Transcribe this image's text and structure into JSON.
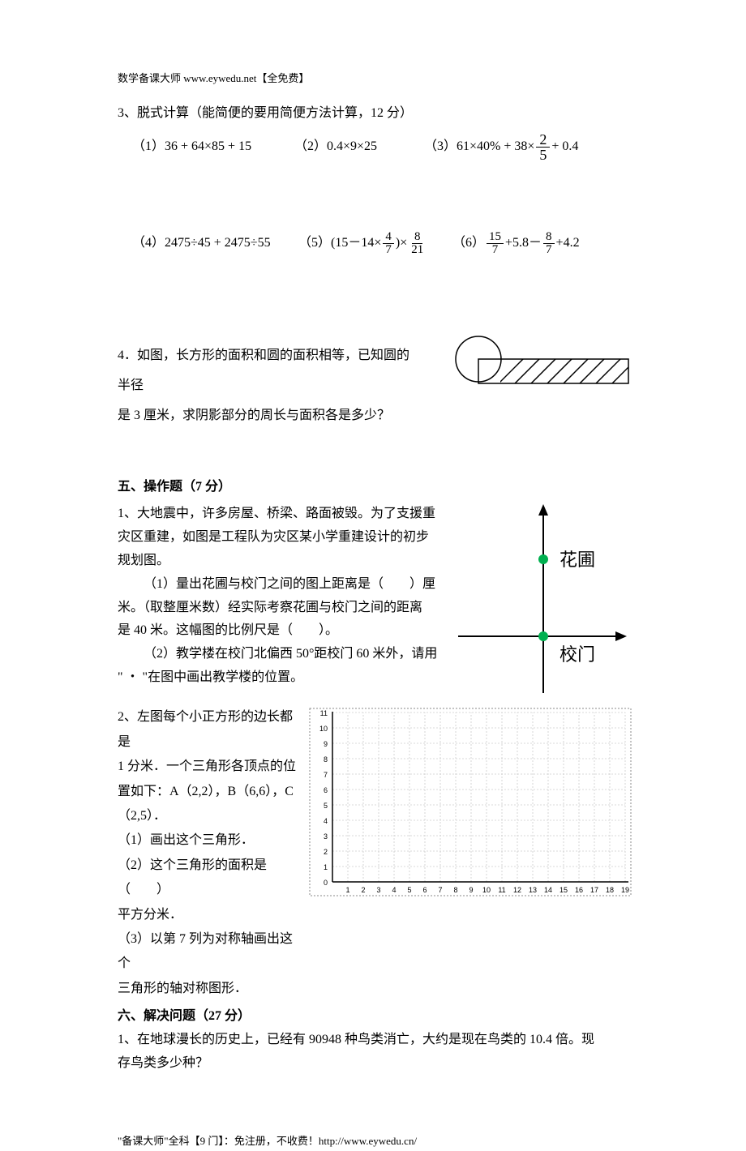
{
  "header": "数学备课大师  www.eywedu.net【全免费】",
  "q3": {
    "title": "3、脱式计算（能简便的要用简便方法计算，12 分）",
    "items": {
      "i1": "（1）36 + 64×85 + 15",
      "i2": "（2）0.4×9×25",
      "i3_prefix": "（3）61×40% + 38×",
      "i3_frac_num": "2",
      "i3_frac_den": "5",
      "i3_suffix": " + 0.4",
      "i4": "（4）2475÷45 + 2475÷55",
      "i5_prefix": "（5）(15－14×",
      "i5_f1_num": "4",
      "i5_f1_den": "7",
      "i5_mid": ")×",
      "i5_f2_num": "8",
      "i5_f2_den": "21",
      "i6_prefix": "（6） ",
      "i6_f1_num": "15",
      "i6_f1_den": "7",
      "i6_mid1": "+5.8－",
      "i6_f2_num": "8",
      "i6_f2_den": "7",
      "i6_suffix": "+4.2"
    }
  },
  "q4": {
    "line1": "4．如图，长方形的面积和圆的面积相等，已知圆的半径",
    "line2": "是 3 厘米，求阴影部分的周长与面积各是多少？"
  },
  "section5": {
    "title": "五、操作题（7 分）",
    "q1": {
      "l1": "1、大地震中，许多房屋、桥梁、路面被毁。为了支援重",
      "l2": "灾区重建，如图是工程队为灾区某小学重建设计的初步",
      "l3": "规划图。",
      "l4": "（1）量出花圃与校门之间的图上距离是（　　）厘",
      "l5": "米。（取整厘米数）经实际考察花圃与校门之间的距离",
      "l6": "是 40 米。这幅图的比例尺是（　　）。",
      "l7": "（2）教学楼在校门北偏西 50°距校门 60 米外，请用",
      "l8": "\" ・ \"在图中画出教学楼的位置。",
      "label_huapu": "花圃",
      "label_xiaomen": "校门"
    },
    "q2": {
      "l1": "2、左图每个小正方形的边长都是",
      "l2": "1 分米．一个三角形各顶点的位",
      "l3": "置如下：A（2,2），B（6,6），C",
      "l4": "（2,5）．",
      "l5": "（1）画出这个三角形．",
      "l6": "（2）这个三角形的面积是（　　）",
      "l7": "平方分米．",
      "l8": "（3）以第 7 列为对称轴画出这个",
      "l9": "三角形的轴对称图形．",
      "ylabels": [
        "11",
        "10",
        "9",
        "8",
        "7",
        "6",
        "5",
        "4",
        "3",
        "2",
        "1",
        "0"
      ],
      "xlabels": [
        "1",
        "2",
        "3",
        "4",
        "5",
        "6",
        "7",
        "8",
        "9",
        "10",
        "11",
        "12",
        "13",
        "14",
        "15",
        "16",
        "17",
        "18",
        "19"
      ]
    }
  },
  "section6": {
    "title": "六、解决问题（27 分）",
    "q1_l1": "1、在地球漫长的历史上，已经有 90948 种鸟类消亡，大约是现在鸟类的 10.4 倍。现",
    "q1_l2": "存鸟类多少种？"
  },
  "footer": "\"备课大师\"全科【9 门】：免注册，不收费！http://www.eywedu.cn/",
  "colors": {
    "hatch": "#000000",
    "dot": "#00b050",
    "axis": "#000000",
    "grid_border": "#888888",
    "grid_line": "#cccccc"
  }
}
